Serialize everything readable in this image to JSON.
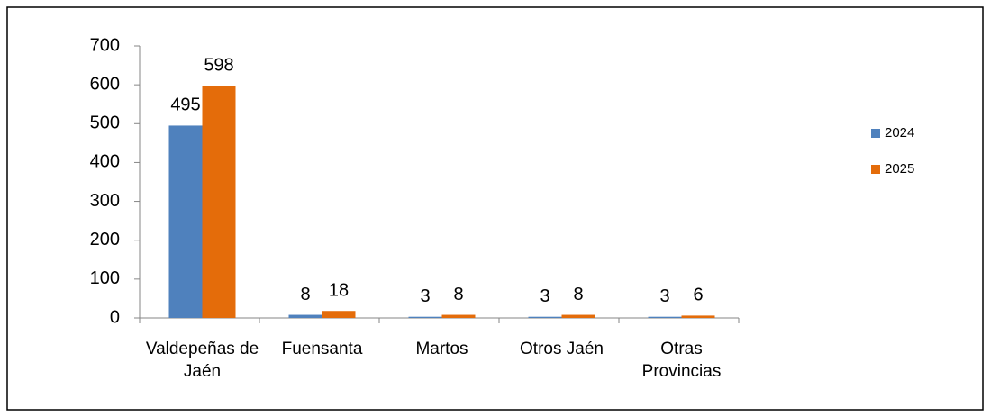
{
  "chart_data": {
    "type": "bar",
    "categories": [
      "Valdepeñas de Jaén",
      "Fuensanta",
      "Martos",
      "Otros Jaén",
      "Otras Provincias"
    ],
    "series": [
      {
        "name": "2024",
        "color": "#4f81bd",
        "values": [
          495,
          8,
          3,
          3,
          3
        ]
      },
      {
        "name": "2025",
        "color": "#e46c0a",
        "values": [
          598,
          18,
          8,
          8,
          6
        ]
      }
    ],
    "ylim": [
      0,
      700
    ],
    "yticks": [
      0,
      100,
      200,
      300,
      400,
      500,
      600,
      700
    ],
    "grid": false,
    "legend": "right"
  }
}
